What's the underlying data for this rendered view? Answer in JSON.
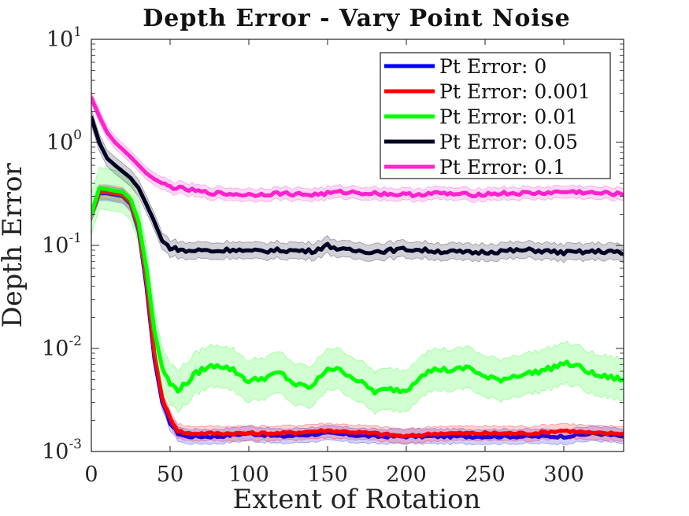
{
  "chart_data": {
    "type": "line",
    "title": "Depth Error - Vary Point Noise",
    "xlabel": "Extent of Rotation",
    "ylabel": "Depth Error",
    "xlim": [
      0,
      338
    ],
    "ylim": [
      0.001,
      10
    ],
    "yscale": "log",
    "x_ticks": [
      0,
      50,
      100,
      150,
      200,
      250,
      300
    ],
    "y_ticks": [
      {
        "value": 0.001,
        "base": "10",
        "exp": "-3"
      },
      {
        "value": 0.01,
        "base": "10",
        "exp": "-2"
      },
      {
        "value": 0.1,
        "base": "10",
        "exp": "-1"
      },
      {
        "value": 1,
        "base": "10",
        "exp": "0"
      },
      {
        "value": 10,
        "base": "10",
        "exp": "1"
      }
    ],
    "grid": false,
    "legend_position": "top-right",
    "series": [
      {
        "name": "Pt Error: 0",
        "color": "#0000ff",
        "band": 0.07,
        "x": [
          0,
          5,
          10,
          20,
          25,
          30,
          35,
          40,
          45,
          50,
          55,
          60,
          70,
          80,
          100,
          120,
          150,
          180,
          200,
          220,
          250,
          280,
          300,
          320,
          338
        ],
        "y": [
          0.2,
          0.32,
          0.32,
          0.3,
          0.25,
          0.14,
          0.04,
          0.008,
          0.003,
          0.0019,
          0.0015,
          0.0014,
          0.0014,
          0.0014,
          0.0015,
          0.0014,
          0.0015,
          0.0014,
          0.0014,
          0.0014,
          0.0014,
          0.0014,
          0.0014,
          0.0015,
          0.0014
        ]
      },
      {
        "name": "Pt Error: 0.001",
        "color": "#ff0000",
        "band": 0.07,
        "x": [
          0,
          5,
          10,
          20,
          25,
          30,
          35,
          40,
          45,
          50,
          55,
          60,
          70,
          80,
          100,
          120,
          150,
          180,
          200,
          220,
          250,
          280,
          300,
          320,
          338
        ],
        "y": [
          0.2,
          0.33,
          0.33,
          0.31,
          0.26,
          0.15,
          0.045,
          0.009,
          0.0033,
          0.0021,
          0.0016,
          0.0015,
          0.0015,
          0.0015,
          0.0015,
          0.0015,
          0.0016,
          0.0015,
          0.0014,
          0.0015,
          0.0015,
          0.0015,
          0.0016,
          0.0015,
          0.0015
        ]
      },
      {
        "name": "Pt Error: 0.01",
        "color": "#00ff00",
        "band": 0.2,
        "x": [
          0,
          5,
          10,
          20,
          25,
          30,
          35,
          40,
          45,
          50,
          55,
          60,
          65,
          70,
          80,
          90,
          100,
          110,
          120,
          130,
          140,
          150,
          160,
          170,
          180,
          190,
          200,
          210,
          220,
          230,
          240,
          250,
          260,
          270,
          280,
          290,
          300,
          310,
          320,
          330,
          338
        ],
        "y": [
          0.2,
          0.36,
          0.35,
          0.33,
          0.28,
          0.17,
          0.06,
          0.015,
          0.0065,
          0.0045,
          0.004,
          0.0045,
          0.0055,
          0.0062,
          0.007,
          0.0062,
          0.0048,
          0.0052,
          0.0058,
          0.0044,
          0.0042,
          0.0065,
          0.006,
          0.0048,
          0.0038,
          0.004,
          0.0039,
          0.0057,
          0.0063,
          0.0061,
          0.0066,
          0.0052,
          0.005,
          0.0055,
          0.0058,
          0.0063,
          0.0072,
          0.0066,
          0.0055,
          0.0052,
          0.005
        ]
      },
      {
        "name": "Pt Error: 0.05",
        "color": "#000022",
        "band": 0.08,
        "x": [
          0,
          5,
          10,
          15,
          20,
          25,
          30,
          35,
          40,
          45,
          50,
          55,
          60,
          70,
          80,
          90,
          100,
          120,
          140,
          150,
          160,
          180,
          200,
          220,
          240,
          260,
          280,
          300,
          320,
          330,
          338
        ],
        "y": [
          1.75,
          1.0,
          0.7,
          0.6,
          0.52,
          0.45,
          0.36,
          0.25,
          0.17,
          0.11,
          0.095,
          0.092,
          0.088,
          0.09,
          0.088,
          0.092,
          0.087,
          0.09,
          0.088,
          0.1,
          0.09,
          0.087,
          0.092,
          0.088,
          0.085,
          0.088,
          0.09,
          0.085,
          0.087,
          0.088,
          0.082
        ]
      },
      {
        "name": "Pt Error: 0.1",
        "color": "#ff22cc",
        "band": 0.06,
        "x": [
          0,
          5,
          10,
          15,
          20,
          25,
          30,
          35,
          40,
          45,
          50,
          60,
          70,
          80,
          100,
          120,
          140,
          160,
          180,
          200,
          220,
          240,
          260,
          280,
          300,
          310,
          320,
          330,
          338
        ],
        "y": [
          2.7,
          1.8,
          1.25,
          1.0,
          0.85,
          0.72,
          0.6,
          0.5,
          0.44,
          0.4,
          0.37,
          0.35,
          0.33,
          0.32,
          0.31,
          0.32,
          0.31,
          0.33,
          0.32,
          0.31,
          0.32,
          0.31,
          0.32,
          0.32,
          0.33,
          0.33,
          0.32,
          0.32,
          0.31
        ]
      }
    ]
  }
}
